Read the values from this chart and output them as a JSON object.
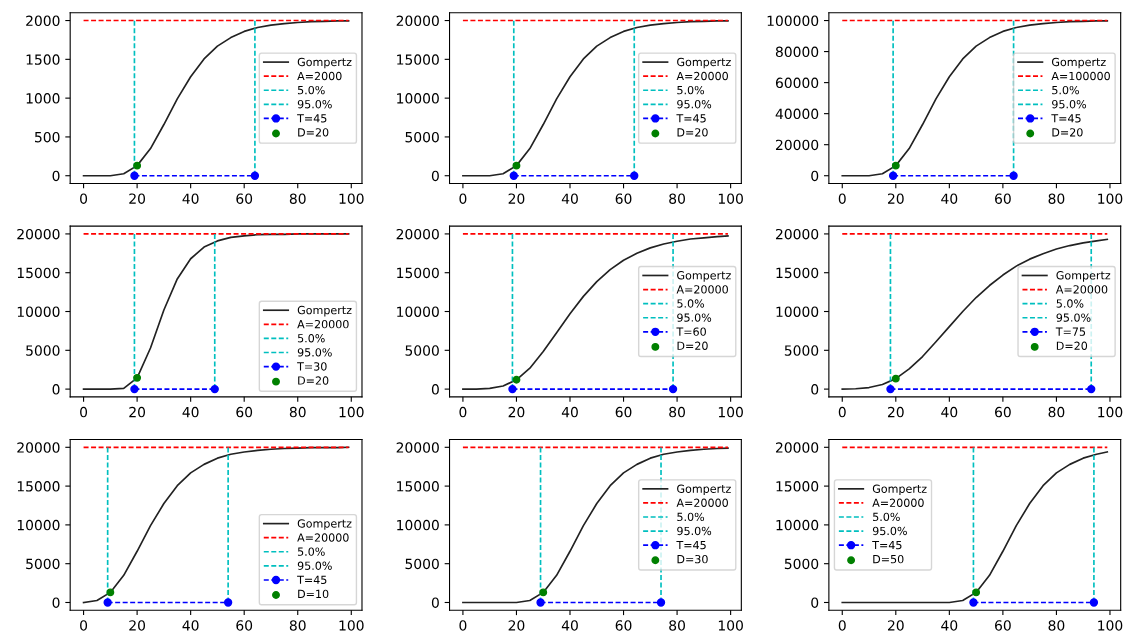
{
  "chart_data": [
    {
      "type": "line",
      "xlim": [
        -5,
        104
      ],
      "xticks": [
        0,
        20,
        40,
        60,
        80,
        100
      ],
      "ylim": [
        -100,
        2100
      ],
      "yticks": [
        0,
        500,
        1000,
        1500,
        2000
      ],
      "grid": false,
      "legend": "center right",
      "x": [
        0,
        5,
        10,
        15,
        20,
        25,
        30,
        35,
        40,
        45,
        50,
        55,
        60,
        65,
        70,
        75,
        80,
        85,
        90,
        95,
        99
      ],
      "series": [
        {
          "name": "Gompertz",
          "color": "#222222",
          "line_style": "solid",
          "values": [
            0,
            0,
            0,
            25,
            130,
            350,
            660,
            990,
            1275,
            1505,
            1670,
            1780,
            1860,
            1910,
            1940,
            1960,
            1975,
            1985,
            1990,
            1995,
            1995
          ]
        },
        {
          "name": "A=2000",
          "color": "#ff0000",
          "line_style": "dashed",
          "x": [
            0,
            99
          ],
          "values": [
            2000,
            2000
          ]
        },
        {
          "name": "5.0%",
          "color": "#00bfbf",
          "line_style": "dashed",
          "x": [
            19,
            19
          ],
          "values": [
            0,
            2000
          ]
        },
        {
          "name": "95.0%",
          "color": "#00bfbf",
          "line_style": "dashed",
          "x": [
            64,
            64
          ],
          "values": [
            0,
            2000
          ]
        },
        {
          "name": "T=45",
          "color": "#0000ff",
          "line_style": "dashed",
          "marker": "circle",
          "x": [
            19,
            64
          ],
          "values": [
            0,
            0
          ]
        },
        {
          "name": "D=20",
          "type": "scatter",
          "color": "#008000",
          "marker": "circle",
          "x": [
            20
          ],
          "values": [
            130
          ]
        }
      ]
    },
    {
      "type": "line",
      "xlim": [
        -5,
        104
      ],
      "xticks": [
        0,
        20,
        40,
        60,
        80,
        100
      ],
      "ylim": [
        -1000,
        21000
      ],
      "yticks": [
        0,
        5000,
        10000,
        15000,
        20000
      ],
      "grid": false,
      "legend": "center right",
      "x": [
        0,
        5,
        10,
        15,
        20,
        25,
        30,
        35,
        40,
        45,
        50,
        55,
        60,
        65,
        70,
        75,
        80,
        85,
        90,
        95,
        99
      ],
      "series": [
        {
          "name": "Gompertz",
          "color": "#222222",
          "line_style": "solid",
          "values": [
            0,
            0,
            0,
            250,
            1300,
            3500,
            6600,
            9900,
            12750,
            15050,
            16700,
            17800,
            18600,
            19100,
            19400,
            19600,
            19750,
            19850,
            19900,
            19950,
            19950
          ]
        },
        {
          "name": "A=20000",
          "color": "#ff0000",
          "line_style": "dashed",
          "x": [
            0,
            99
          ],
          "values": [
            20000,
            20000
          ]
        },
        {
          "name": "5.0%",
          "color": "#00bfbf",
          "line_style": "dashed",
          "x": [
            19,
            19
          ],
          "values": [
            0,
            20000
          ]
        },
        {
          "name": "95.0%",
          "color": "#00bfbf",
          "line_style": "dashed",
          "x": [
            64,
            64
          ],
          "values": [
            0,
            20000
          ]
        },
        {
          "name": "T=45",
          "color": "#0000ff",
          "line_style": "dashed",
          "marker": "circle",
          "x": [
            19,
            64
          ],
          "values": [
            0,
            0
          ]
        },
        {
          "name": "D=20",
          "type": "scatter",
          "color": "#008000",
          "marker": "circle",
          "x": [
            20
          ],
          "values": [
            1300
          ]
        }
      ]
    },
    {
      "type": "line",
      "xlim": [
        -5,
        104
      ],
      "xticks": [
        0,
        20,
        40,
        60,
        80,
        100
      ],
      "ylim": [
        -5000,
        105000
      ],
      "yticks": [
        0,
        20000,
        40000,
        60000,
        80000,
        100000
      ],
      "grid": false,
      "legend": "center right",
      "x": [
        0,
        5,
        10,
        15,
        20,
        25,
        30,
        35,
        40,
        45,
        50,
        55,
        60,
        65,
        70,
        75,
        80,
        85,
        90,
        95,
        99
      ],
      "series": [
        {
          "name": "Gompertz",
          "color": "#222222",
          "line_style": "solid",
          "values": [
            0,
            0,
            0,
            1250,
            6500,
            17500,
            33000,
            49500,
            63750,
            75250,
            83500,
            89000,
            93000,
            95500,
            97000,
            98000,
            98750,
            99250,
            99500,
            99750,
            99750
          ]
        },
        {
          "name": "A=100000",
          "color": "#ff0000",
          "line_style": "dashed",
          "x": [
            0,
            99
          ],
          "values": [
            100000,
            100000
          ]
        },
        {
          "name": "5.0%",
          "color": "#00bfbf",
          "line_style": "dashed",
          "x": [
            19,
            19
          ],
          "values": [
            0,
            100000
          ]
        },
        {
          "name": "95.0%",
          "color": "#00bfbf",
          "line_style": "dashed",
          "x": [
            64,
            64
          ],
          "values": [
            0,
            100000
          ]
        },
        {
          "name": "T=45",
          "color": "#0000ff",
          "line_style": "dashed",
          "marker": "circle",
          "x": [
            19,
            64
          ],
          "values": [
            0,
            0
          ]
        },
        {
          "name": "D=20",
          "type": "scatter",
          "color": "#008000",
          "marker": "circle",
          "x": [
            20
          ],
          "values": [
            6500
          ]
        }
      ]
    },
    {
      "type": "line",
      "xlim": [
        -5,
        104
      ],
      "xticks": [
        0,
        20,
        40,
        60,
        80,
        100
      ],
      "ylim": [
        -1000,
        21000
      ],
      "yticks": [
        0,
        5000,
        10000,
        15000,
        20000
      ],
      "grid": false,
      "legend": "lower right",
      "x": [
        0,
        5,
        10,
        15,
        20,
        25,
        30,
        35,
        40,
        45,
        50,
        55,
        60,
        65,
        70,
        75,
        80,
        85,
        90,
        95,
        99
      ],
      "series": [
        {
          "name": "Gompertz",
          "color": "#222222",
          "line_style": "solid",
          "values": [
            0,
            0,
            0,
            100,
            1450,
            5300,
            10200,
            14200,
            16800,
            18300,
            19100,
            19550,
            19750,
            19900,
            19950,
            19950,
            20000,
            20000,
            20000,
            20000,
            20000
          ]
        },
        {
          "name": "A=20000",
          "color": "#ff0000",
          "line_style": "dashed",
          "x": [
            0,
            99
          ],
          "values": [
            20000,
            20000
          ]
        },
        {
          "name": "5.0%",
          "color": "#00bfbf",
          "line_style": "dashed",
          "x": [
            19,
            19
          ],
          "values": [
            0,
            20000
          ]
        },
        {
          "name": "95.0%",
          "color": "#00bfbf",
          "line_style": "dashed",
          "x": [
            49,
            49
          ],
          "values": [
            0,
            20000
          ]
        },
        {
          "name": "T=30",
          "color": "#0000ff",
          "line_style": "dashed",
          "marker": "circle",
          "x": [
            19,
            49
          ],
          "values": [
            0,
            0
          ]
        },
        {
          "name": "D=20",
          "type": "scatter",
          "color": "#008000",
          "marker": "circle",
          "x": [
            20
          ],
          "values": [
            1450
          ]
        }
      ]
    },
    {
      "type": "line",
      "xlim": [
        -5,
        104
      ],
      "xticks": [
        0,
        20,
        40,
        60,
        80,
        100
      ],
      "ylim": [
        -1000,
        21000
      ],
      "yticks": [
        0,
        5000,
        10000,
        15000,
        20000
      ],
      "grid": false,
      "legend": "center right",
      "x": [
        0,
        5,
        10,
        15,
        20,
        25,
        30,
        35,
        40,
        45,
        50,
        55,
        60,
        65,
        70,
        75,
        80,
        85,
        90,
        95,
        99
      ],
      "series": [
        {
          "name": "Gompertz",
          "color": "#222222",
          "line_style": "solid",
          "values": [
            0,
            0,
            100,
            400,
            1200,
            2700,
            4850,
            7250,
            9700,
            11950,
            13850,
            15400,
            16600,
            17500,
            18200,
            18700,
            19050,
            19350,
            19500,
            19650,
            19750
          ]
        },
        {
          "name": "A=20000",
          "color": "#ff0000",
          "line_style": "dashed",
          "x": [
            0,
            99
          ],
          "values": [
            20000,
            20000
          ]
        },
        {
          "name": "5.0%",
          "color": "#00bfbf",
          "line_style": "dashed",
          "x": [
            18.5,
            18.5
          ],
          "values": [
            0,
            20000
          ]
        },
        {
          "name": "95.0%",
          "color": "#00bfbf",
          "line_style": "dashed",
          "x": [
            78.5,
            78.5
          ],
          "values": [
            0,
            20000
          ]
        },
        {
          "name": "T=60",
          "color": "#0000ff",
          "line_style": "dashed",
          "marker": "circle",
          "x": [
            18.5,
            78.5
          ],
          "values": [
            0,
            0
          ]
        },
        {
          "name": "D=20",
          "type": "scatter",
          "color": "#008000",
          "marker": "circle",
          "x": [
            20
          ],
          "values": [
            1200
          ]
        }
      ]
    },
    {
      "type": "line",
      "xlim": [
        -5,
        104
      ],
      "xticks": [
        0,
        20,
        40,
        60,
        80,
        100
      ],
      "ylim": [
        -1000,
        21000
      ],
      "yticks": [
        0,
        5000,
        10000,
        15000,
        20000
      ],
      "grid": false,
      "legend": "center right",
      "x": [
        0,
        5,
        10,
        15,
        20,
        25,
        30,
        35,
        40,
        45,
        50,
        55,
        60,
        65,
        70,
        75,
        80,
        85,
        90,
        95,
        99
      ],
      "series": [
        {
          "name": "Gompertz",
          "color": "#222222",
          "line_style": "solid",
          "values": [
            0,
            50,
            200,
            600,
            1350,
            2600,
            4200,
            6100,
            8050,
            10000,
            11800,
            13350,
            14700,
            15850,
            16750,
            17450,
            18050,
            18500,
            18850,
            19100,
            19300
          ]
        },
        {
          "name": "A=20000",
          "color": "#ff0000",
          "line_style": "dashed",
          "x": [
            0,
            99
          ],
          "values": [
            20000,
            20000
          ]
        },
        {
          "name": "5.0%",
          "color": "#00bfbf",
          "line_style": "dashed",
          "x": [
            18,
            18
          ],
          "values": [
            0,
            20000
          ]
        },
        {
          "name": "95.0%",
          "color": "#00bfbf",
          "line_style": "dashed",
          "x": [
            93,
            93
          ],
          "values": [
            0,
            20000
          ]
        },
        {
          "name": "T=75",
          "color": "#0000ff",
          "line_style": "dashed",
          "marker": "circle",
          "x": [
            18,
            93
          ],
          "values": [
            0,
            0
          ]
        },
        {
          "name": "D=20",
          "type": "scatter",
          "color": "#008000",
          "marker": "circle",
          "x": [
            20
          ],
          "values": [
            1350
          ]
        }
      ]
    },
    {
      "type": "line",
      "xlim": [
        -5,
        104
      ],
      "xticks": [
        0,
        20,
        40,
        60,
        80,
        100
      ],
      "ylim": [
        -1000,
        21000
      ],
      "yticks": [
        0,
        5000,
        10000,
        15000,
        20000
      ],
      "grid": false,
      "legend": "lower right",
      "x": [
        0,
        5,
        10,
        15,
        20,
        25,
        30,
        35,
        40,
        45,
        50,
        55,
        60,
        65,
        70,
        75,
        80,
        85,
        90,
        95,
        99
      ],
      "series": [
        {
          "name": "Gompertz",
          "color": "#222222",
          "line_style": "solid",
          "values": [
            0,
            250,
            1300,
            3500,
            6600,
            9900,
            12750,
            15050,
            16700,
            17800,
            18600,
            19100,
            19400,
            19600,
            19750,
            19850,
            19900,
            19950,
            19950,
            19950,
            20000
          ]
        },
        {
          "name": "A=20000",
          "color": "#ff0000",
          "line_style": "dashed",
          "x": [
            0,
            99
          ],
          "values": [
            20000,
            20000
          ]
        },
        {
          "name": "5.0%",
          "color": "#00bfbf",
          "line_style": "dashed",
          "x": [
            9,
            9
          ],
          "values": [
            0,
            20000
          ]
        },
        {
          "name": "95.0%",
          "color": "#00bfbf",
          "line_style": "dashed",
          "x": [
            54,
            54
          ],
          "values": [
            0,
            20000
          ]
        },
        {
          "name": "T=45",
          "color": "#0000ff",
          "line_style": "dashed",
          "marker": "circle",
          "x": [
            9,
            54
          ],
          "values": [
            0,
            0
          ]
        },
        {
          "name": "D=10",
          "type": "scatter",
          "color": "#008000",
          "marker": "circle",
          "x": [
            10
          ],
          "values": [
            1300
          ]
        }
      ]
    },
    {
      "type": "line",
      "xlim": [
        -5,
        104
      ],
      "xticks": [
        0,
        20,
        40,
        60,
        80,
        100
      ],
      "ylim": [
        -1000,
        21000
      ],
      "yticks": [
        0,
        5000,
        10000,
        15000,
        20000
      ],
      "grid": false,
      "legend": "center right",
      "x": [
        0,
        5,
        10,
        15,
        20,
        25,
        30,
        35,
        40,
        45,
        50,
        55,
        60,
        65,
        70,
        75,
        80,
        85,
        90,
        95,
        99
      ],
      "series": [
        {
          "name": "Gompertz",
          "color": "#222222",
          "line_style": "solid",
          "values": [
            0,
            0,
            0,
            0,
            0,
            250,
            1300,
            3500,
            6600,
            9900,
            12750,
            15050,
            16700,
            17800,
            18600,
            19100,
            19400,
            19600,
            19750,
            19850,
            19900
          ]
        },
        {
          "name": "A=20000",
          "color": "#ff0000",
          "line_style": "dashed",
          "x": [
            0,
            99
          ],
          "values": [
            20000,
            20000
          ]
        },
        {
          "name": "5.0%",
          "color": "#00bfbf",
          "line_style": "dashed",
          "x": [
            29,
            29
          ],
          "values": [
            0,
            20000
          ]
        },
        {
          "name": "95.0%",
          "color": "#00bfbf",
          "line_style": "dashed",
          "x": [
            74,
            74
          ],
          "values": [
            0,
            20000
          ]
        },
        {
          "name": "T=45",
          "color": "#0000ff",
          "line_style": "dashed",
          "marker": "circle",
          "x": [
            29,
            74
          ],
          "values": [
            0,
            0
          ]
        },
        {
          "name": "D=30",
          "type": "scatter",
          "color": "#008000",
          "marker": "circle",
          "x": [
            30
          ],
          "values": [
            1300
          ]
        }
      ]
    },
    {
      "type": "line",
      "xlim": [
        -5,
        104
      ],
      "xticks": [
        0,
        20,
        40,
        60,
        80,
        100
      ],
      "ylim": [
        -1000,
        21000
      ],
      "yticks": [
        0,
        5000,
        10000,
        15000,
        20000
      ],
      "grid": false,
      "legend": "center left",
      "x": [
        0,
        5,
        10,
        15,
        20,
        25,
        30,
        35,
        40,
        45,
        50,
        55,
        60,
        65,
        70,
        75,
        80,
        85,
        90,
        95,
        99
      ],
      "series": [
        {
          "name": "Gompertz",
          "color": "#222222",
          "line_style": "solid",
          "values": [
            0,
            0,
            0,
            0,
            0,
            0,
            0,
            0,
            0,
            250,
            1300,
            3500,
            6600,
            9900,
            12750,
            15050,
            16700,
            17800,
            18600,
            19100,
            19400
          ]
        },
        {
          "name": "A=20000",
          "color": "#ff0000",
          "line_style": "dashed",
          "x": [
            0,
            99
          ],
          "values": [
            20000,
            20000
          ]
        },
        {
          "name": "5.0%",
          "color": "#00bfbf",
          "line_style": "dashed",
          "x": [
            49,
            49
          ],
          "values": [
            0,
            20000
          ]
        },
        {
          "name": "95.0%",
          "color": "#00bfbf",
          "line_style": "dashed",
          "x": [
            94,
            94
          ],
          "values": [
            0,
            20000
          ]
        },
        {
          "name": "T=45",
          "color": "#0000ff",
          "line_style": "dashed",
          "marker": "circle",
          "x": [
            49,
            94
          ],
          "values": [
            0,
            0
          ]
        },
        {
          "name": "D=50",
          "type": "scatter",
          "color": "#008000",
          "marker": "circle",
          "x": [
            50
          ],
          "values": [
            1300
          ]
        }
      ]
    }
  ]
}
